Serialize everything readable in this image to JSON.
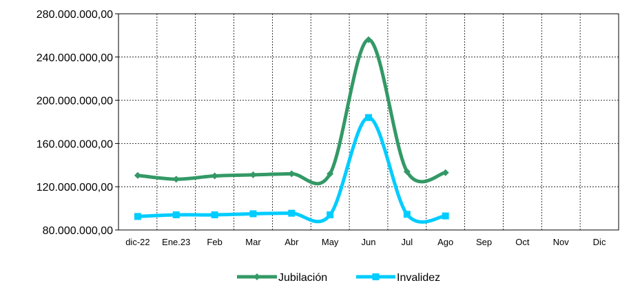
{
  "chart_data": {
    "type": "line",
    "categories": [
      "dic-22",
      "Ene.23",
      "Feb",
      "Mar",
      "Abr",
      "May",
      "Jun",
      "Jul",
      "Ago",
      "Sep",
      "Oct",
      "Nov",
      "Dic"
    ],
    "y_tick_labels": [
      "80.000.000,00",
      "120.000.000,00",
      "160.000.000,00",
      "200.000.000,00",
      "240.000.000,00",
      "280.000.000,00"
    ],
    "ylim": [
      80000000,
      280000000
    ],
    "grid": true,
    "legend_position": "bottom",
    "series": [
      {
        "name": "Jubilación",
        "color": "#339966",
        "marker": "diamond",
        "values": [
          130500000,
          127000000,
          130000000,
          131000000,
          132000000,
          132000000,
          256000000,
          134000000,
          133000000,
          null,
          null,
          null,
          null
        ]
      },
      {
        "name": "Invalidez",
        "color": "#00CCFF",
        "marker": "square",
        "values": [
          92500000,
          94000000,
          94000000,
          95000000,
          95500000,
          94000000,
          184000000,
          94500000,
          93000000,
          null,
          null,
          null,
          null
        ]
      }
    ]
  }
}
